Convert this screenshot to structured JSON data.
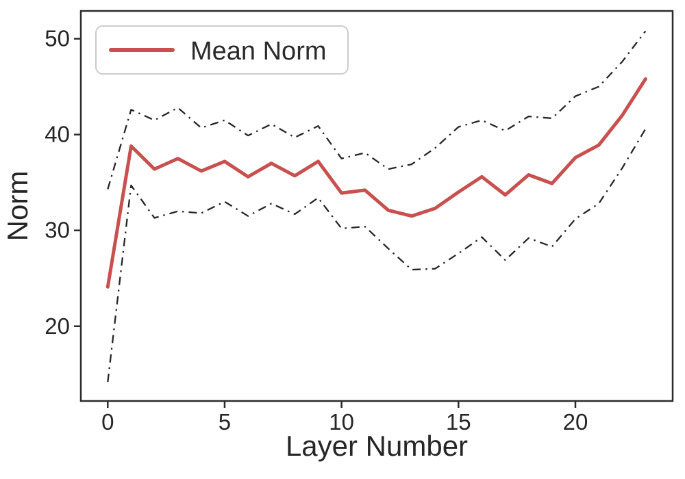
{
  "figure": {
    "background": "#ffffff",
    "text_color": "#262626",
    "spine_color": "#2b2b2b",
    "legend": {
      "label": "Mean Norm",
      "line_color": "#C8504E"
    }
  },
  "chart_data": {
    "type": "line",
    "title": "",
    "xlabel": "Layer Number",
    "ylabel": "Norm",
    "x": [
      0,
      1,
      2,
      3,
      4,
      5,
      6,
      7,
      8,
      9,
      10,
      11,
      12,
      13,
      14,
      15,
      16,
      17,
      18,
      19,
      20,
      21,
      22,
      23
    ],
    "series": [
      {
        "name": "Mean Norm",
        "key": "mean-line",
        "style": "solid",
        "color": "#C8504E",
        "in_legend": true,
        "values": [
          24.1,
          38.8,
          36.4,
          37.5,
          36.2,
          37.2,
          35.6,
          37.0,
          35.7,
          37.2,
          33.9,
          34.2,
          32.1,
          31.5,
          32.3,
          34.0,
          35.6,
          33.7,
          35.8,
          34.9,
          37.6,
          38.9,
          42.0,
          45.8
        ]
      },
      {
        "name": "upper-band",
        "key": "upper-band-line",
        "style": "dashdot",
        "color": "#262626",
        "in_legend": false,
        "values": [
          34.3,
          42.6,
          41.5,
          42.8,
          40.7,
          41.5,
          39.9,
          41.1,
          39.7,
          40.9,
          37.5,
          38.1,
          36.4,
          36.9,
          38.6,
          40.8,
          41.5,
          40.4,
          41.9,
          41.7,
          44.0,
          45.0,
          47.6,
          50.8
        ]
      },
      {
        "name": "lower-band",
        "key": "lower-band-line",
        "style": "dashdot",
        "color": "#262626",
        "in_legend": false,
        "values": [
          14.2,
          34.7,
          31.3,
          32.0,
          31.8,
          33.0,
          31.5,
          32.8,
          31.7,
          33.4,
          30.2,
          30.4,
          28.1,
          25.9,
          26.0,
          27.6,
          29.3,
          26.9,
          29.2,
          28.3,
          31.2,
          32.8,
          36.5,
          40.6
        ]
      }
    ],
    "x_ticks": [
      0,
      5,
      10,
      15,
      20
    ],
    "y_ticks": [
      20,
      30,
      40,
      50
    ],
    "xlim": [
      -1.15,
      24.16
    ],
    "ylim": [
      12.2,
      52.9
    ],
    "grid": false,
    "legend_position": "upper left"
  }
}
